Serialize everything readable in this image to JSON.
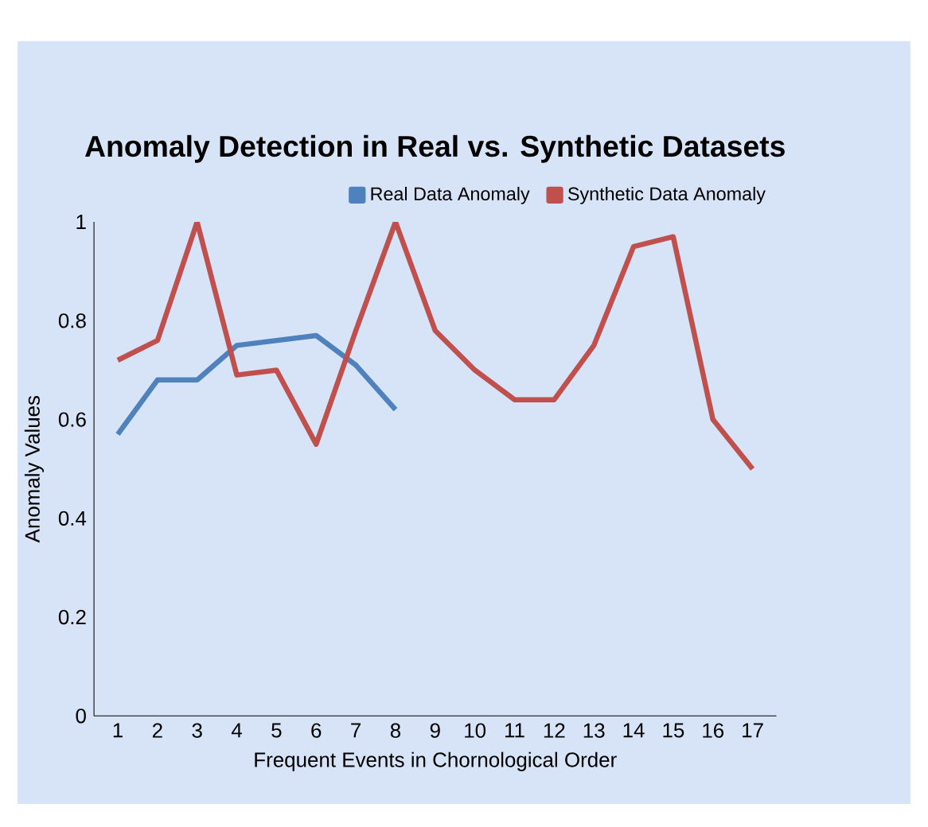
{
  "chart_data": {
    "type": "line",
    "title": "Anomaly Detection in Real vs. Synthetic Datasets",
    "xlabel": "Frequent Events in Chornological Order",
    "ylabel": "Anomaly Values",
    "categories": [
      "1",
      "2",
      "3",
      "4",
      "5",
      "6",
      "7",
      "8",
      "9",
      "10",
      "11",
      "12",
      "13",
      "14",
      "15",
      "16",
      "17"
    ],
    "series": [
      {
        "name": "Real Data Anomaly",
        "color": "#4f81bd",
        "values": [
          0.57,
          0.68,
          0.68,
          0.75,
          0.76,
          0.77,
          0.71,
          0.62,
          null,
          null,
          null,
          null,
          null,
          null,
          null,
          null,
          null
        ]
      },
      {
        "name": "Synthetic Data Anomaly",
        "color": "#c0504d",
        "values": [
          0.72,
          0.76,
          1.0,
          0.69,
          0.7,
          0.55,
          0.78,
          1.0,
          0.78,
          0.7,
          0.64,
          0.64,
          0.75,
          0.95,
          0.97,
          0.6,
          0.5
        ]
      }
    ],
    "ylim": [
      0,
      1
    ],
    "yticks": [
      0,
      0.2,
      0.4,
      0.6,
      0.8,
      1
    ],
    "legend": "top right",
    "grid": false,
    "marker": "none",
    "line_style": "solid"
  }
}
